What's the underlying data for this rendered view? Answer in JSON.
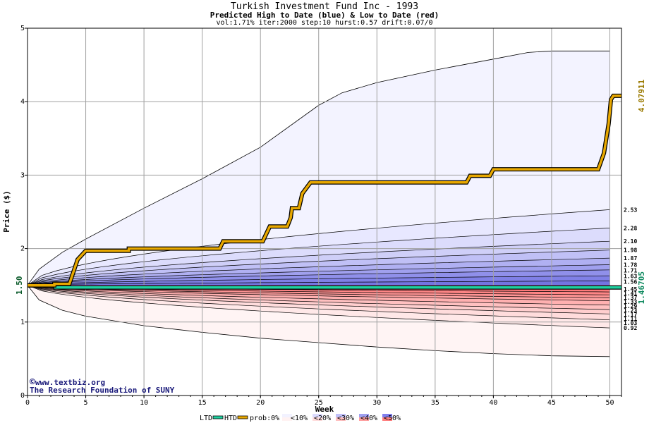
{
  "title": "Turkish Investment Fund Inc - 1993",
  "subtitle": "Predicted High to Date (blue) &  Low to Date (red)",
  "params": "vol:1.71% iter:2000 step:10 hurst:0.57 drift:0.07/0",
  "credit": {
    "symbol": "©",
    "site": "www.textbiz.org",
    "org": "The Research Foundation of SUNY"
  },
  "colors": {
    "background": "#ffffff",
    "grid": "#a0a0a0",
    "htd": "#e8a800",
    "ltd": "#20d0a0",
    "high_label": "#9a7a00",
    "low_label": "#108a60",
    "start_label": "#0a5a2a"
  },
  "chart_data": {
    "type": "area",
    "title": "Turkish Investment Fund Inc - 1993",
    "xlabel": "Week",
    "ylabel": "Price ($)",
    "xlim": [
      0,
      51
    ],
    "ylim": [
      0,
      5
    ],
    "xticks": [
      0,
      5,
      10,
      15,
      20,
      25,
      30,
      35,
      40,
      45,
      50
    ],
    "yticks": [
      0,
      1,
      2,
      3,
      4,
      5
    ],
    "grid": true,
    "start_value": 1.5,
    "start_label": "1.50",
    "high_to_date_final": 4.07911,
    "high_to_date_label": "4.07911",
    "low_to_date_final": 1.46705,
    "low_to_date_label": "1.46705",
    "htd_series": {
      "name": "HTD",
      "points": [
        [
          0,
          1.5
        ],
        [
          2.3,
          1.5
        ],
        [
          2.3,
          1.52
        ],
        [
          3.6,
          1.52
        ],
        [
          4.3,
          1.85
        ],
        [
          5,
          1.97
        ],
        [
          7,
          1.97
        ],
        [
          8.7,
          1.97
        ],
        [
          8.7,
          2.0
        ],
        [
          16.5,
          2.0
        ],
        [
          16.8,
          2.1
        ],
        [
          20.2,
          2.1
        ],
        [
          20.8,
          2.3
        ],
        [
          22.3,
          2.3
        ],
        [
          22.6,
          2.42
        ],
        [
          22.7,
          2.55
        ],
        [
          23.3,
          2.55
        ],
        [
          23.6,
          2.75
        ],
        [
          24.3,
          2.9
        ],
        [
          37.7,
          2.9
        ],
        [
          38,
          2.99
        ],
        [
          39.7,
          2.99
        ],
        [
          40,
          3.08
        ],
        [
          49,
          3.08
        ],
        [
          49.5,
          3.3
        ],
        [
          49.9,
          3.7
        ],
        [
          50.1,
          4.03
        ],
        [
          50.3,
          4.08
        ],
        [
          51,
          4.08
        ]
      ]
    },
    "ltd_series": {
      "name": "LTD",
      "points": [
        [
          0,
          1.5
        ],
        [
          2.4,
          1.5
        ],
        [
          2.4,
          1.47
        ],
        [
          51,
          1.47
        ]
      ]
    },
    "high_band_labels": [
      "2.53",
      "2.28",
      "2.10",
      "1.98",
      "1.87",
      "1.78",
      "1.71",
      "1.63",
      "1.56"
    ],
    "high_band_values": [
      2.53,
      2.28,
      2.1,
      1.98,
      1.87,
      1.78,
      1.71,
      1.63,
      1.56
    ],
    "low_band_labels": [
      "1.45",
      "1.41",
      "1.37",
      "1.33",
      "1.29",
      "1.23",
      "1.17",
      "1.11",
      "1.03",
      "0.92"
    ],
    "low_band_values": [
      1.45,
      1.41,
      1.37,
      1.33,
      1.29,
      1.23,
      1.17,
      1.11,
      1.03,
      0.92
    ],
    "outer_envelope_high": [
      [
        0,
        1.5
      ],
      [
        1,
        1.72
      ],
      [
        3,
        1.95
      ],
      [
        5,
        2.13
      ],
      [
        10,
        2.55
      ],
      [
        15,
        2.95
      ],
      [
        20,
        3.38
      ],
      [
        25,
        3.95
      ],
      [
        27,
        4.12
      ],
      [
        30,
        4.26
      ],
      [
        35,
        4.43
      ],
      [
        40,
        4.58
      ],
      [
        43,
        4.67
      ],
      [
        45,
        4.69
      ],
      [
        50,
        4.69
      ]
    ],
    "outer_envelope_low": [
      [
        0,
        1.5
      ],
      [
        1,
        1.3
      ],
      [
        3,
        1.16
      ],
      [
        5,
        1.08
      ],
      [
        10,
        0.95
      ],
      [
        15,
        0.86
      ],
      [
        20,
        0.78
      ],
      [
        25,
        0.72
      ],
      [
        30,
        0.66
      ],
      [
        35,
        0.61
      ],
      [
        40,
        0.57
      ],
      [
        45,
        0.54
      ],
      [
        50,
        0.53
      ]
    ],
    "legend": {
      "ltd": "LTD",
      "htd": "HTD",
      "prob_prefix": "prob:0%",
      "bins": [
        "<10%",
        "<20%",
        "<30%",
        "<40%",
        "<50%"
      ],
      "bin_colors_blue": [
        "#f2f2ff",
        "#dcdcff",
        "#c0c0f8",
        "#a0a0f0",
        "#8080ee"
      ],
      "bin_colors_red": [
        "#fff2f2",
        "#ffdcdc",
        "#ffc0c0",
        "#ffa0a0",
        "#ff8080"
      ]
    }
  }
}
